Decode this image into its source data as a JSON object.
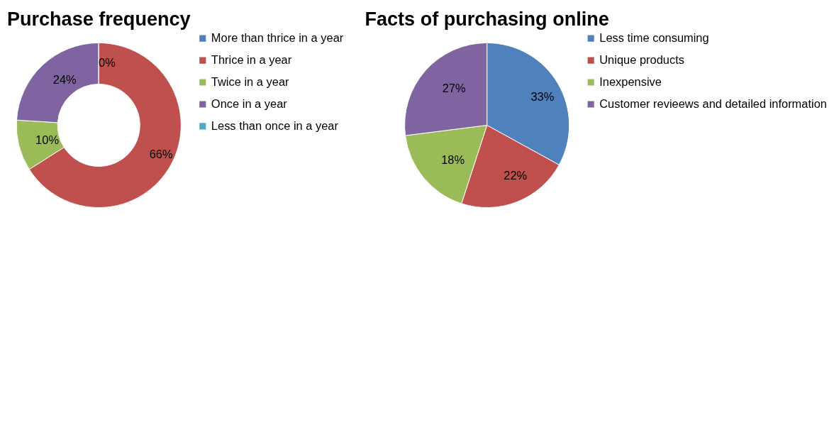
{
  "chart_data": [
    {
      "type": "donut",
      "title": "Purchase frequency",
      "categories": [
        "More than thrice in a year",
        "Thrice in a year",
        "Twice in a year",
        "Once in a year",
        "Less than once in a year"
      ],
      "values": [
        0,
        66,
        10,
        24,
        0
      ],
      "colors": [
        "#4f81bd",
        "#c0504d",
        "#9bbb59",
        "#8064a2",
        "#4bacc6"
      ],
      "value_labels": [
        "0%",
        "66%",
        "10%",
        "24%",
        null
      ],
      "legend": "right"
    },
    {
      "type": "pie",
      "title": "Facts of purchasing online",
      "categories": [
        "Less time consuming",
        "Unique products",
        "Inexpensive",
        "Customer revieews and detailed information"
      ],
      "values": [
        33,
        22,
        18,
        27
      ],
      "colors": [
        "#4f81bd",
        "#c0504d",
        "#9bbb59",
        "#8064a2"
      ],
      "value_labels": [
        "33%",
        "22%",
        "18%",
        "27%"
      ],
      "legend": "right"
    }
  ]
}
